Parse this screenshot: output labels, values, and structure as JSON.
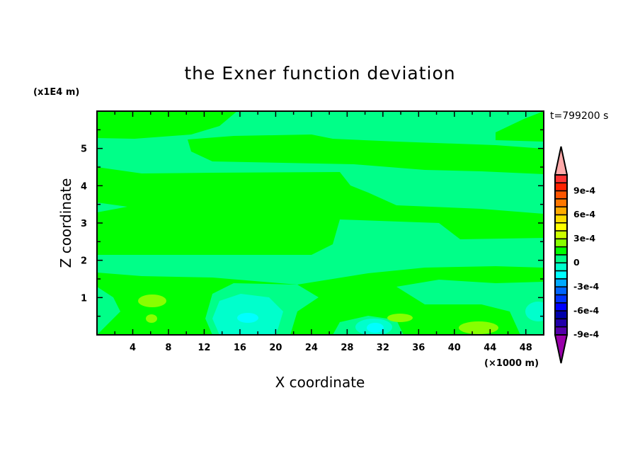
{
  "chart_data": {
    "type": "heatmap",
    "subtype": "filled-contour",
    "title": "the Exner function deviation",
    "xlabel": "X coordinate",
    "ylabel": "Z coordinate",
    "x_unit_label": "(×1000 m)",
    "y_unit_label": "(x1E4 m)",
    "time_label": "t=799200 s",
    "xlim": [
      0,
      50
    ],
    "ylim": [
      0,
      6
    ],
    "xticks": [
      4,
      8,
      12,
      16,
      20,
      24,
      28,
      32,
      36,
      40,
      44,
      48
    ],
    "yticks": [
      1,
      2,
      3,
      4,
      5
    ],
    "grid": false,
    "colorbar": {
      "min": -0.001,
      "max": 0.001,
      "step": 0.0001,
      "extend": "both",
      "tick_labels": [
        "9e-4",
        "6e-4",
        "3e-4",
        "0",
        "-3e-4",
        "-6e-4",
        "-9e-4"
      ],
      "tick_values": [
        0.0009,
        0.0006,
        0.0003,
        0,
        -0.0003,
        -0.0006,
        -0.0009
      ],
      "colors_top_to_bottom": [
        "#ff3333",
        "#ff2200",
        "#ff5500",
        "#ff7700",
        "#ffaa00",
        "#ffdd00",
        "#ffff00",
        "#ccff00",
        "#88ff00",
        "#00ff00",
        "#00ff88",
        "#00ffcc",
        "#00ffff",
        "#00aaff",
        "#0066ff",
        "#0033ff",
        "#0000ff",
        "#0000aa",
        "#2200aa",
        "#5500aa"
      ],
      "over_color": "#ffaaaa",
      "under_color": "#9900aa"
    },
    "field_colors": {
      "level_0_to_1e-4": "#00ff00",
      "level_-1e-4_to_0": "#00ff88",
      "level_-2e-4_to_-1e-4": "#00ffcc",
      "level_-3e-4_to_-2e-4": "#00ffff",
      "level_1e-4_to_2e-4": "#88ff00"
    }
  }
}
